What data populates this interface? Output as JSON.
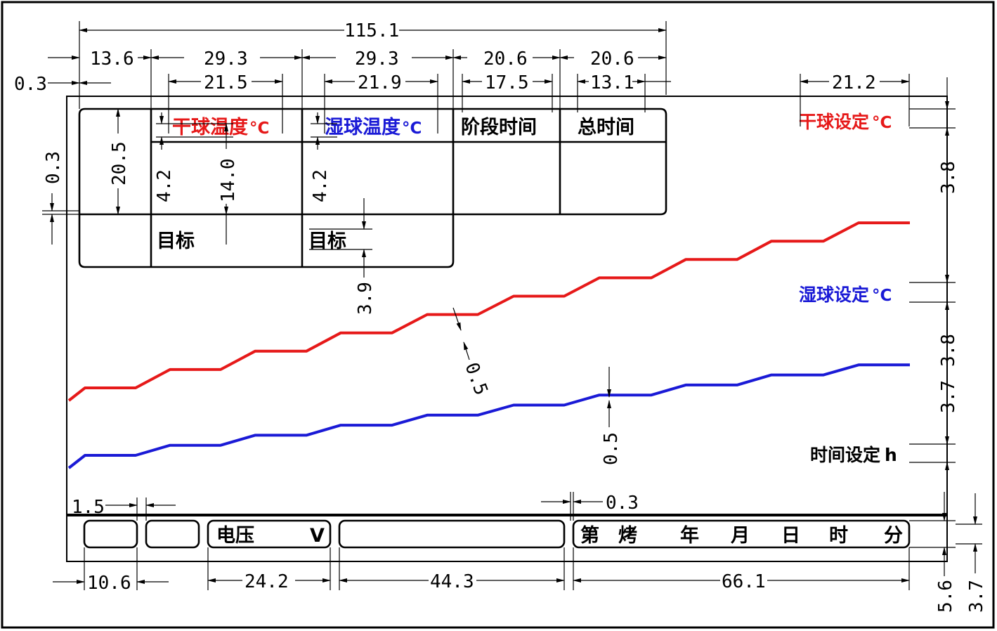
{
  "colors": {
    "dry": "#e61919",
    "wet": "#1a1ad6",
    "ink": "#000000"
  },
  "labels": {
    "dry_temp": "干球温度",
    "wet_temp": "湿球温度",
    "celsius": "°C",
    "stage_time": "阶段时间",
    "total_time": "总时间",
    "target": "目标",
    "dry_set": "干球设定",
    "wet_set": "湿球设定",
    "time_set": "时间设定",
    "hour": "h",
    "voltage": "电压",
    "volt": "V",
    "date_chars": [
      "第",
      "烤",
      "年",
      "月",
      "日",
      "时",
      "分"
    ]
  },
  "dimensions": {
    "d115_1": "115.1",
    "d13_6": "13.6",
    "d29_3a": "29.3",
    "d29_3b": "29.3",
    "d20_6a": "20.6",
    "d20_6b": "20.6",
    "d0_3top": "0.3",
    "d21_5": "21.5",
    "d21_9": "21.9",
    "d17_5": "17.5",
    "d13_1": "13.1",
    "d21_2": "21.2",
    "d20_5": "20.5",
    "d0_3left": "0.3",
    "d4_2a": "4.2",
    "d14_0": "14.0",
    "d4_2b": "4.2",
    "d3_9": "3.9",
    "d0_5a": "0.5",
    "d0_5b": "0.5",
    "d3_8a": "3.8",
    "d3_8b": "3.8",
    "d3_7a": "3.7",
    "d1_5": "1.5",
    "d0_3bottom": "0.3",
    "d10_6": "10.6",
    "d24_2": "24.2",
    "d44_3": "44.3",
    "d66_1": "66.1",
    "d5_6": "5.6",
    "d3_7b": "3.7"
  },
  "chart_data": {
    "type": "line",
    "series": [
      {
        "name": "干球",
        "values": [
          0,
          1,
          1,
          2,
          2,
          3,
          3,
          4,
          4,
          5,
          5,
          6,
          6,
          7,
          7,
          8,
          8,
          9,
          9,
          10,
          10,
          11,
          11
        ]
      },
      {
        "name": "湿球",
        "values": [
          0,
          1,
          1,
          2,
          2,
          3,
          3,
          4,
          4,
          5,
          5,
          6,
          6,
          7,
          7,
          8,
          8,
          9,
          9,
          10,
          10,
          11,
          11
        ]
      }
    ]
  }
}
